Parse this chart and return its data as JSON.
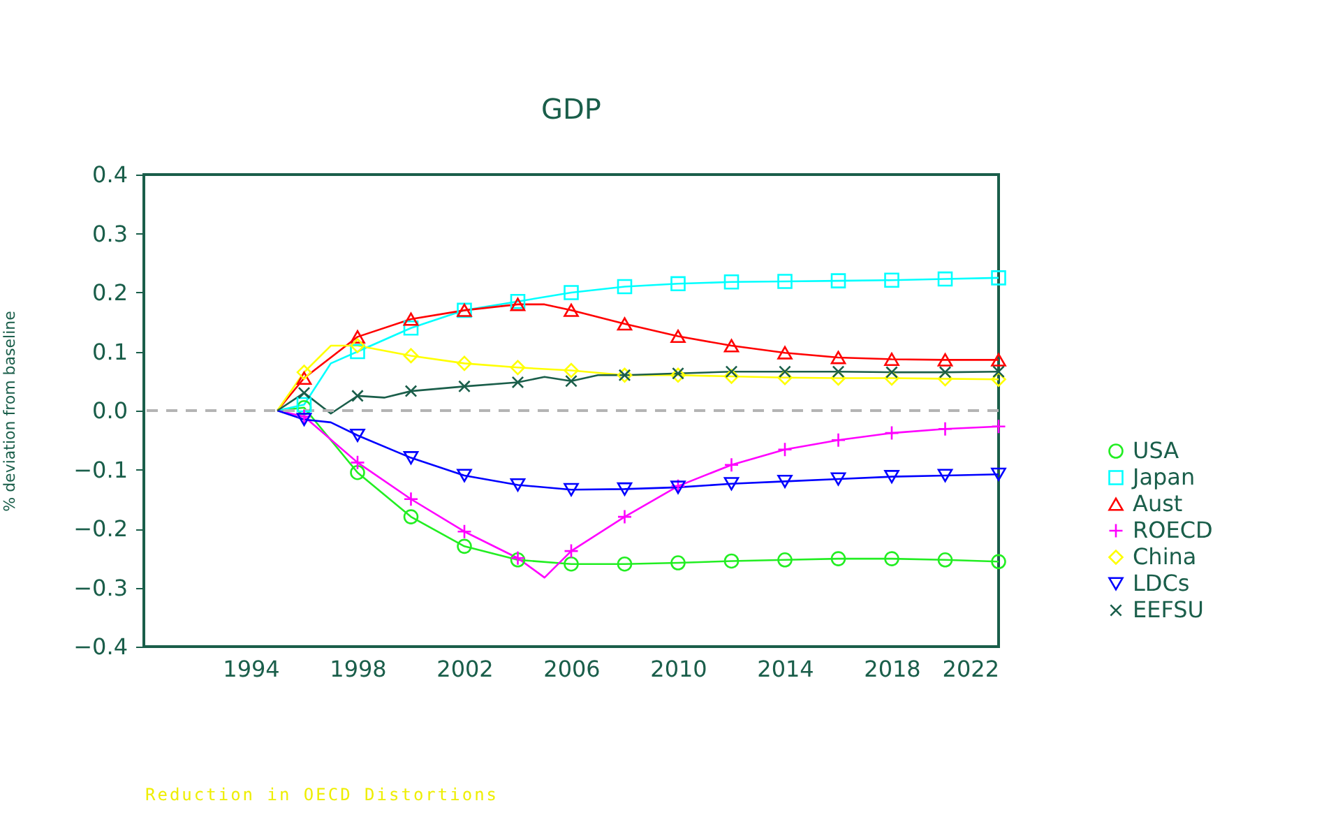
{
  "chart_data": {
    "type": "line",
    "title": "GDP",
    "ylabel": "% deviation from baseline",
    "xlim": [
      1990,
      2022
    ],
    "xticks": [
      1994,
      1998,
      2002,
      2006,
      2010,
      2014,
      2018,
      2022
    ],
    "ylim": [
      -0.4,
      0.4
    ],
    "yticks": [
      -0.4,
      -0.3,
      -0.2,
      -0.1,
      {
        "value": 0,
        "label": "0.0"
      },
      0.1,
      0.2,
      0.3,
      0.4
    ],
    "grid": false,
    "legend": "right",
    "ref_lines": [
      {
        "axis": "y",
        "value": 0,
        "color": "#b4b4b4",
        "line_style": "dashed"
      }
    ],
    "annotations": [
      "Reduction in OECD Distortions"
    ],
    "series": [
      {
        "name": "USA",
        "color": "#22ee22",
        "marker": "circle",
        "x": [
          1995,
          1996,
          1998,
          2000,
          2002,
          2004,
          2006,
          2008,
          2010,
          2012,
          2014,
          2016,
          2018,
          2020,
          2022
        ],
        "values": [
          0,
          0.005,
          -0.105,
          -0.18,
          -0.23,
          -0.253,
          -0.26,
          -0.26,
          -0.258,
          -0.255,
          -0.253,
          -0.251,
          -0.251,
          -0.253,
          -0.256
        ]
      },
      {
        "name": "Japan",
        "color": "#00ffff",
        "marker": "square",
        "x": [
          1995,
          1996,
          1997,
          1998,
          2000,
          2002,
          2004,
          2006,
          2008,
          2010,
          2012,
          2014,
          2016,
          2018,
          2020,
          2022
        ],
        "values": [
          0,
          0.01,
          0.08,
          0.1,
          0.14,
          0.17,
          0.185,
          0.2,
          0.21,
          0.215,
          0.218,
          0.219,
          0.22,
          0.221,
          0.223,
          0.225
        ]
      },
      {
        "name": "Aust",
        "color": "#ff0000",
        "marker": "triangle",
        "x": [
          1995,
          1996,
          1998,
          2000,
          2002,
          2004,
          2005,
          2006,
          2008,
          2010,
          2012,
          2014,
          2016,
          2018,
          2020,
          2022
        ],
        "values": [
          0,
          0.055,
          0.125,
          0.155,
          0.17,
          0.18,
          0.18,
          0.17,
          0.147,
          0.126,
          0.11,
          0.098,
          0.09,
          0.087,
          0.086,
          0.086
        ]
      },
      {
        "name": "ROECD",
        "color": "#ff00ff",
        "marker": "cross",
        "x": [
          1995,
          1996,
          1998,
          2000,
          2002,
          2004,
          2005,
          2006,
          2008,
          2010,
          2012,
          2014,
          2016,
          2018,
          2020,
          2022
        ],
        "values": [
          0,
          -0.01,
          -0.088,
          -0.15,
          -0.205,
          -0.25,
          -0.283,
          -0.238,
          -0.18,
          -0.128,
          -0.092,
          -0.066,
          -0.05,
          -0.038,
          -0.031,
          -0.027
        ]
      },
      {
        "name": "China",
        "color": "#ffff00",
        "marker": "diamond",
        "x": [
          1995,
          1996,
          1997,
          1998,
          2000,
          2002,
          2004,
          2006,
          2008,
          2010,
          2012,
          2014,
          2016,
          2018,
          2020,
          2022
        ],
        "values": [
          0,
          0.065,
          0.11,
          0.11,
          0.093,
          0.08,
          0.073,
          0.068,
          0.06,
          0.06,
          0.058,
          0.056,
          0.055,
          0.055,
          0.054,
          0.053
        ]
      },
      {
        "name": "LDCs",
        "color": "#0000ff",
        "marker": "triangle-down",
        "x": [
          1995,
          1996,
          1997,
          1998,
          2000,
          2002,
          2004,
          2006,
          2008,
          2010,
          2012,
          2014,
          2016,
          2018,
          2020,
          2022
        ],
        "values": [
          0,
          -0.015,
          -0.02,
          -0.042,
          -0.08,
          -0.11,
          -0.126,
          -0.134,
          -0.133,
          -0.13,
          -0.124,
          -0.12,
          -0.116,
          -0.112,
          -0.11,
          -0.108
        ]
      },
      {
        "name": "EEFSU",
        "color": "#1a5e4a",
        "marker": "x",
        "x": [
          1995,
          1996,
          1997,
          1998,
          1999,
          2000,
          2002,
          2004,
          2005,
          2006,
          2007,
          2008,
          2010,
          2012,
          2014,
          2016,
          2018,
          2020,
          2022
        ],
        "values": [
          0,
          0.03,
          -0.005,
          0.025,
          0.022,
          0.033,
          0.041,
          0.048,
          0.057,
          0.05,
          0.06,
          0.06,
          0.063,
          0.066,
          0.066,
          0.066,
          0.065,
          0.065,
          0.066
        ]
      }
    ]
  }
}
